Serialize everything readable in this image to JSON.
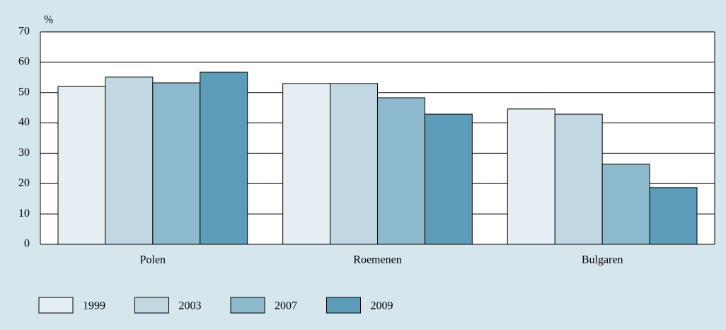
{
  "chart_data": {
    "type": "bar",
    "y_label": "%",
    "categories": [
      "Polen",
      "Roemenen",
      "Bulgaren"
    ],
    "series": [
      {
        "name": "1999",
        "color": "#e4eef3",
        "values": [
          52.0,
          53.0,
          44.6
        ]
      },
      {
        "name": "2003",
        "color": "#c1d8e3",
        "values": [
          55.1,
          53.0,
          42.9
        ]
      },
      {
        "name": "2007",
        "color": "#8db9cd",
        "values": [
          53.2,
          48.3,
          26.4
        ]
      },
      {
        "name": "2009",
        "color": "#5c9cb9",
        "values": [
          56.7,
          42.9,
          18.7
        ]
      }
    ],
    "ylim": [
      0,
      70
    ],
    "yticks": [
      0,
      10,
      20,
      30,
      40,
      50,
      60,
      70
    ],
    "grid": true
  }
}
